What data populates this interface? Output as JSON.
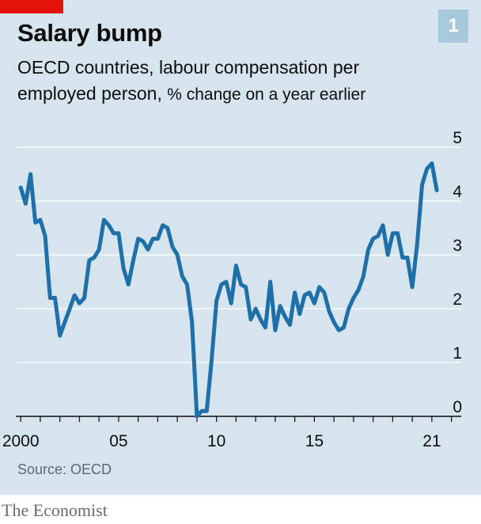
{
  "header": {
    "title": "Salary bump",
    "subtitle_line1": "OECD countries, labour compensation per",
    "subtitle_line2_main": "employed person,",
    "subtitle_line2_unit": "% change on a year earlier",
    "chart_number": "1"
  },
  "footer": {
    "source": "Source: OECD",
    "brand": "The Economist"
  },
  "colors": {
    "background": "#d6e4ee",
    "line": "#1f6fa8",
    "accent_red": "#e3120b",
    "grid": "#ffffff"
  },
  "chart_data": {
    "type": "line",
    "title": "Salary bump",
    "xlabel": "",
    "ylabel": "% change on a year earlier",
    "ylim": [
      0,
      5
    ],
    "xlim": [
      1999.75,
      2022.5
    ],
    "grid": true,
    "y_ticks": [
      "0",
      "1",
      "2",
      "3",
      "4",
      "5"
    ],
    "x_ticks": [
      {
        "value": 2000,
        "label": "2000"
      },
      {
        "value": 2005,
        "label": "05"
      },
      {
        "value": 2010,
        "label": "10"
      },
      {
        "value": 2015,
        "label": "15"
      },
      {
        "value": 2021,
        "label": "21"
      }
    ],
    "series": [
      {
        "name": "",
        "x": [
          2000.0,
          2000.25,
          2000.5,
          2000.75,
          2001.0,
          2001.25,
          2001.5,
          2001.75,
          2002.0,
          2002.25,
          2002.5,
          2002.75,
          2003.0,
          2003.25,
          2003.5,
          2003.75,
          2004.0,
          2004.25,
          2004.5,
          2004.75,
          2005.0,
          2005.25,
          2005.5,
          2005.75,
          2006.0,
          2006.25,
          2006.5,
          2006.75,
          2007.0,
          2007.25,
          2007.5,
          2007.75,
          2008.0,
          2008.25,
          2008.5,
          2008.75,
          2009.0,
          2009.25,
          2009.5,
          2009.75,
          2010.0,
          2010.25,
          2010.5,
          2010.75,
          2011.0,
          2011.25,
          2011.5,
          2011.75,
          2012.0,
          2012.25,
          2012.5,
          2012.75,
          2013.0,
          2013.25,
          2013.5,
          2013.75,
          2014.0,
          2014.25,
          2014.5,
          2014.75,
          2015.0,
          2015.25,
          2015.5,
          2015.75,
          2016.0,
          2016.25,
          2016.5,
          2016.75,
          2017.0,
          2017.25,
          2017.5,
          2017.75,
          2018.0,
          2018.25,
          2018.5,
          2018.75,
          2019.0,
          2019.25,
          2019.5,
          2019.75,
          2020.0,
          2020.25,
          2020.5,
          2020.75,
          2021.0,
          2021.25
        ],
        "values": [
          4.25,
          3.95,
          4.5,
          3.6,
          3.65,
          3.35,
          2.2,
          2.2,
          1.5,
          1.75,
          2.0,
          2.25,
          2.1,
          2.2,
          2.9,
          2.95,
          3.1,
          3.65,
          3.55,
          3.4,
          3.4,
          2.75,
          2.45,
          2.9,
          3.3,
          3.25,
          3.1,
          3.3,
          3.3,
          3.55,
          3.5,
          3.15,
          3.0,
          2.6,
          2.45,
          1.75,
          0.0,
          0.1,
          0.1,
          1.05,
          2.15,
          2.45,
          2.5,
          2.1,
          2.8,
          2.45,
          2.4,
          1.8,
          2.0,
          1.8,
          1.65,
          2.5,
          1.6,
          2.05,
          1.85,
          1.7,
          2.3,
          1.9,
          2.25,
          2.3,
          2.1,
          2.4,
          2.3,
          1.95,
          1.75,
          1.6,
          1.65,
          2.0,
          2.2,
          2.35,
          2.6,
          3.1,
          3.3,
          3.35,
          3.55,
          3.0,
          3.4,
          3.4,
          2.95,
          2.95,
          2.4,
          3.2,
          4.3,
          4.6,
          4.7,
          4.2
        ]
      }
    ]
  }
}
